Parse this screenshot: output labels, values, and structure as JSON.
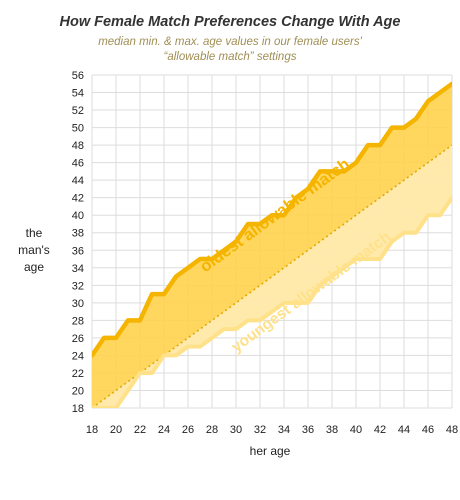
{
  "chart_data": {
    "type": "area",
    "title": "How Female Match Preferences Change With Age",
    "subtitle_line1": "median min. & max. age values in our female users'",
    "subtitle_line2": "“allowable match” settings",
    "xlabel": "her age",
    "ylabel_line1": "the",
    "ylabel_line2": "man's",
    "ylabel_line3": "age",
    "xlim": [
      18,
      48
    ],
    "ylim": [
      18,
      56
    ],
    "x_ticks": [
      "18",
      "20",
      "22",
      "24",
      "26",
      "28",
      "30",
      "32",
      "34",
      "36",
      "38",
      "40",
      "42",
      "44",
      "46",
      "48"
    ],
    "y_ticks": [
      "18",
      "20",
      "22",
      "24",
      "26",
      "28",
      "30",
      "32",
      "34",
      "36",
      "38",
      "40",
      "42",
      "44",
      "46",
      "48",
      "50",
      "52",
      "54",
      "56"
    ],
    "grid": true,
    "x": [
      18,
      19,
      20,
      21,
      22,
      23,
      24,
      25,
      26,
      27,
      28,
      29,
      30,
      31,
      32,
      33,
      34,
      35,
      36,
      37,
      38,
      39,
      40,
      41,
      42,
      43,
      44,
      45,
      46,
      47,
      48
    ],
    "series": [
      {
        "name": "oldest allowable match",
        "color": "#f5b400",
        "values": [
          24,
          26,
          26,
          28,
          28,
          31,
          31,
          33,
          34,
          35,
          35,
          36,
          37,
          39,
          39,
          40,
          40,
          42,
          43,
          45,
          45,
          45,
          46,
          48,
          48,
          50,
          50,
          51,
          53,
          54,
          55
        ]
      },
      {
        "name": "youngest allowable match",
        "color": "#ffe18a",
        "values": [
          18,
          18,
          18,
          20,
          22,
          22,
          24,
          24,
          25,
          25,
          26,
          27,
          27,
          28,
          28,
          29,
          30,
          30,
          30,
          32,
          33,
          34,
          35,
          35,
          35,
          37,
          38,
          38,
          40,
          40,
          42
        ]
      }
    ],
    "reference_line": {
      "style": "dotted",
      "from": [
        18,
        18
      ],
      "to": [
        48,
        48
      ]
    }
  }
}
